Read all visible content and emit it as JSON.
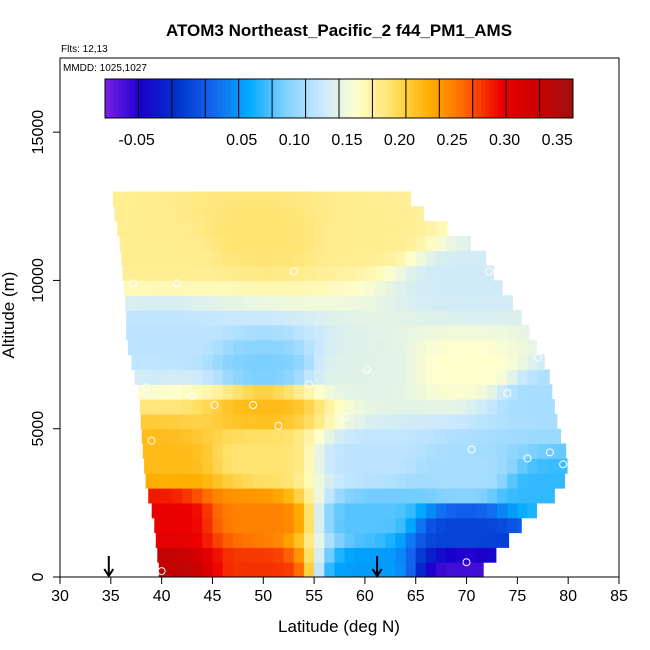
{
  "chart_data": {
    "type": "heatmap",
    "title": "ATOM3 Northeast_Pacific_2 f44_PM1_AMS",
    "flights_label": "Flts: 12,13",
    "dates_label": "MMDD: 1025,1027",
    "xlabel": "Latitude (deg N)",
    "ylabel": "Altitude (m)",
    "xlim": [
      30,
      85
    ],
    "ylim": [
      0,
      17500
    ],
    "x_ticks": [
      30,
      35,
      40,
      45,
      50,
      55,
      60,
      65,
      70,
      75,
      80,
      85
    ],
    "y_ticks": [
      0,
      5000,
      10000,
      15000
    ],
    "colorbar": {
      "range": [
        -0.08,
        0.365
      ],
      "tick_values": [
        -0.05,
        0.05,
        0.1,
        0.15,
        0.2,
        0.25,
        0.3,
        0.35
      ],
      "tick_labels": [
        "-0.05",
        "0.05",
        "0.10",
        "0.15",
        "0.20",
        "0.25",
        "0.30",
        "0.35"
      ],
      "colors": [
        "#7a1fe6",
        "#1a00cc",
        "#0033cc",
        "#1466ee",
        "#00aaff",
        "#7fd0ff",
        "#c8e8ff",
        "#ffffcc",
        "#ffe066",
        "#ffb000",
        "#ff6600",
        "#ee0000",
        "#cc0000",
        "#a01010"
      ]
    },
    "domain_profile": {
      "altitudes": [
        0,
        1000,
        2000,
        3000,
        4000,
        5000,
        6000,
        7000,
        8000,
        9000,
        10000,
        11000,
        12000,
        12500
      ],
      "lat_start": [
        39.8,
        39.5,
        39.2,
        38.5,
        38.2,
        38.0,
        37.8,
        37.2,
        36.5,
        36.5,
        36.2,
        36.0,
        35.5,
        35.2
      ],
      "lat_end": [
        71.0,
        73.5,
        76.0,
        79.5,
        80.0,
        79.0,
        78.5,
        78.0,
        76.5,
        75.0,
        73.0,
        71.5,
        67.0,
        64.5
      ]
    },
    "field_samples": [
      {
        "lat": 40,
        "alt": 250,
        "value": 0.34
      },
      {
        "lat": 40,
        "alt": 2000,
        "value": 0.3
      },
      {
        "lat": 40,
        "alt": 4000,
        "value": 0.22
      },
      {
        "lat": 40,
        "alt": 8000,
        "value": 0.12
      },
      {
        "lat": 40,
        "alt": 11000,
        "value": 0.18
      },
      {
        "lat": 50,
        "alt": 250,
        "value": 0.28
      },
      {
        "lat": 50,
        "alt": 2000,
        "value": 0.25
      },
      {
        "lat": 50,
        "alt": 4000,
        "value": 0.19
      },
      {
        "lat": 50,
        "alt": 5800,
        "value": 0.22
      },
      {
        "lat": 50,
        "alt": 7000,
        "value": 0.09
      },
      {
        "lat": 50,
        "alt": 11500,
        "value": 0.19
      },
      {
        "lat": 60,
        "alt": 250,
        "value": 0.05
      },
      {
        "lat": 60,
        "alt": 2000,
        "value": 0.08
      },
      {
        "lat": 60,
        "alt": 4000,
        "value": 0.12
      },
      {
        "lat": 60,
        "alt": 7000,
        "value": 0.14
      },
      {
        "lat": 60,
        "alt": 11500,
        "value": 0.18
      },
      {
        "lat": 70,
        "alt": 250,
        "value": -0.06
      },
      {
        "lat": 70,
        "alt": 1500,
        "value": 0.0
      },
      {
        "lat": 70,
        "alt": 3500,
        "value": 0.11
      },
      {
        "lat": 70,
        "alt": 7000,
        "value": 0.16
      },
      {
        "lat": 70,
        "alt": 10000,
        "value": 0.13
      },
      {
        "lat": 78,
        "alt": 3000,
        "value": 0.07
      },
      {
        "lat": 78,
        "alt": 6000,
        "value": 0.11
      }
    ],
    "observations": [
      {
        "lat": 35.5,
        "alt": 7200
      },
      {
        "lat": 37.2,
        "alt": 9900
      },
      {
        "lat": 38.5,
        "alt": 6400
      },
      {
        "lat": 39.0,
        "alt": 4600
      },
      {
        "lat": 40.0,
        "alt": 200
      },
      {
        "lat": 41.5,
        "alt": 9900
      },
      {
        "lat": 43.0,
        "alt": 6100
      },
      {
        "lat": 45.2,
        "alt": 5800
      },
      {
        "lat": 49.0,
        "alt": 5800
      },
      {
        "lat": 51.5,
        "alt": 5100
      },
      {
        "lat": 53.0,
        "alt": 10300
      },
      {
        "lat": 54.5,
        "alt": 6500
      },
      {
        "lat": 58.0,
        "alt": 5400
      },
      {
        "lat": 60.2,
        "alt": 7000
      },
      {
        "lat": 70.5,
        "alt": 4300
      },
      {
        "lat": 70.0,
        "alt": 500
      },
      {
        "lat": 72.2,
        "alt": 10300
      },
      {
        "lat": 74.0,
        "alt": 6200
      },
      {
        "lat": 76.0,
        "alt": 4000
      },
      {
        "lat": 77.0,
        "alt": 7400
      },
      {
        "lat": 78.2,
        "alt": 4200
      },
      {
        "lat": 79.5,
        "alt": 3800
      }
    ],
    "arrow_markers": [
      34.8,
      61.2
    ]
  }
}
